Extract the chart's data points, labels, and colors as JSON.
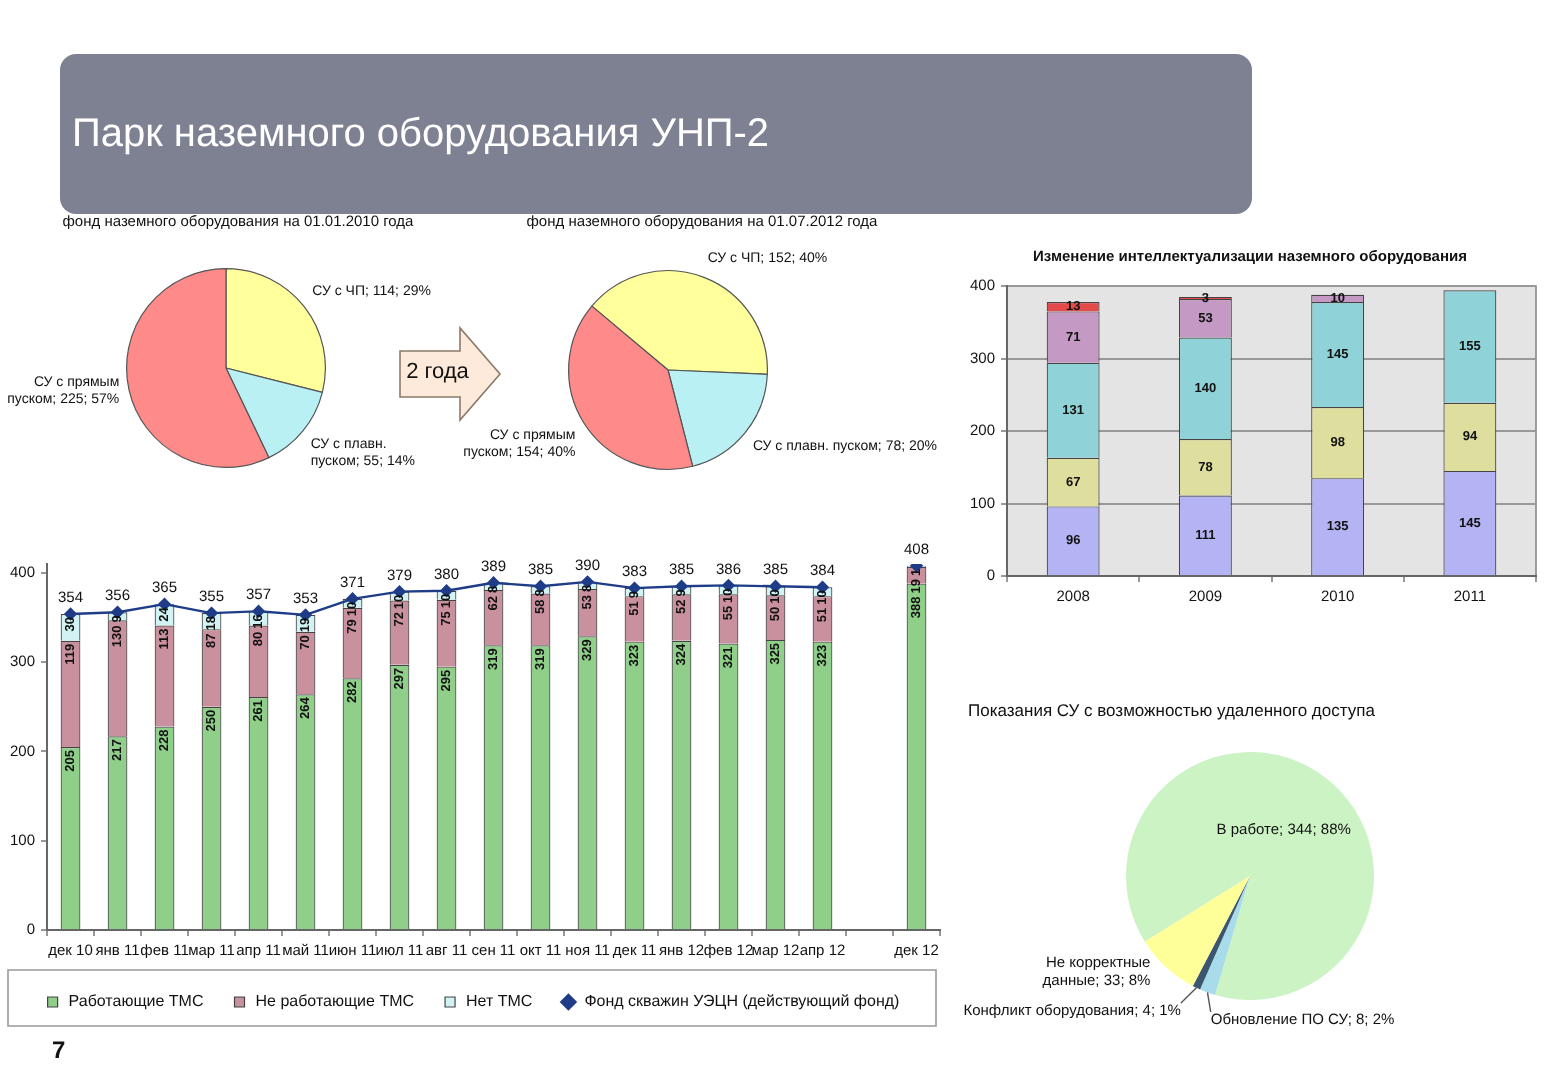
{
  "chart_data": [
    {
      "type": "other",
      "title": "Парк наземного оборудования УНП-2"
    },
    {
      "type": "pie",
      "title": "фонд наземного оборудования на 01.01.2010 года",
      "categories": [
        "СУ с ЧП",
        "СУ с плавн. пуском",
        "СУ с прямым пуском"
      ],
      "values": [
        114,
        55,
        225
      ],
      "value_labels": [
        "114; 29%",
        "55; 14%",
        "225; 57%"
      ],
      "colors": [
        "#ffff9c",
        "#b8f0f4",
        "#ff8a8a"
      ],
      "annotations": [
        "2 года"
      ]
    },
    {
      "type": "pie",
      "title": "фонд наземного оборудования на 01.07.2012 года",
      "categories": [
        "СУ с ЧП",
        "СУ с плавн. пуском",
        "СУ с прямым пуском"
      ],
      "values": [
        152,
        78,
        154
      ],
      "value_labels": [
        "152; 40%",
        "78; 20%",
        "154; 40%"
      ],
      "colors": [
        "#ffff9c",
        "#b8f0f4",
        "#ff8a8a"
      ]
    },
    {
      "type": "bar",
      "title": "Изменение интеллектуализации наземного оборудования",
      "categories": [
        "2008",
        "2009",
        "2010",
        "2011"
      ],
      "stacked": true,
      "series": [
        {
          "color": "#b4b4f5",
          "values": [
            96,
            111,
            135,
            145
          ]
        },
        {
          "color": "#dede9e",
          "values": [
            67,
            78,
            98,
            94
          ]
        },
        {
          "color": "#8fd3d8",
          "values": [
            131,
            140,
            145,
            155
          ]
        },
        {
          "color": "#c49ac4",
          "values": [
            71,
            53,
            10,
            null
          ]
        },
        {
          "color": "#e34a4a",
          "values": [
            13,
            3,
            null,
            null
          ]
        }
      ],
      "ylim": [
        0,
        400
      ],
      "yticks": [
        0,
        100,
        200,
        300,
        400
      ],
      "grid": "y",
      "data_labels": true
    },
    {
      "type": "bar",
      "categories": [
        "дек 10",
        "янв 11",
        "фев 11",
        "мар 11",
        "апр 11",
        "май 11",
        "июн 11",
        "июл 11",
        "авг 11",
        "сен 11",
        "окт 11",
        "ноя 11",
        "дек 11",
        "янв 12",
        "фев 12",
        "мар 12",
        "апр 12",
        null,
        "дек 12"
      ],
      "stacked": true,
      "series": [
        {
          "name": "Работающие ТМС",
          "color": "#8fcf8a",
          "values": [
            205,
            217,
            228,
            250,
            261,
            264,
            282,
            297,
            295,
            319,
            319,
            329,
            323,
            324,
            321,
            325,
            323,
            null,
            388
          ]
        },
        {
          "name": "Не работающие ТМС",
          "color": "#c9909e",
          "values": [
            119,
            130,
            113,
            87,
            80,
            70,
            79,
            72,
            75,
            62,
            58,
            53,
            51,
            52,
            55,
            50,
            51,
            null,
            19
          ]
        },
        {
          "name": "Нет ТМС",
          "color": "#d2f3f3",
          "values": [
            30,
            9,
            24,
            18,
            16,
            19,
            10,
            10,
            10,
            8,
            8,
            8,
            9,
            9,
            10,
            10,
            10,
            null,
            1
          ]
        },
        {
          "name": "Фонд скважин УЭЦН (действующий фонд)",
          "type": "line",
          "color": "#1f3c88",
          "values": [
            354,
            356,
            365,
            355,
            357,
            353,
            371,
            379,
            380,
            389,
            385,
            390,
            383,
            385,
            386,
            385,
            384,
            null,
            408
          ]
        }
      ],
      "ylim": [
        0,
        410
      ],
      "yticks": [
        0,
        100,
        200,
        300,
        400
      ],
      "marker": "diamond",
      "legend": "bottom",
      "data_labels": true,
      "annotations": [
        "7"
      ]
    },
    {
      "type": "pie",
      "title": "Показания СУ с возможностью удаленного доступа",
      "categories": [
        "В работе",
        "Обновление ПО СУ",
        "Конфликт оборудования",
        "Не корректные данные"
      ],
      "values": [
        344,
        8,
        4,
        33
      ],
      "value_labels": [
        "344; 88%",
        "8; 2%",
        "4; 1%",
        "33; 8%"
      ],
      "colors": [
        "#ccf3c4",
        "#a8dcea",
        "#3d5670",
        "#ffff99"
      ]
    }
  ]
}
